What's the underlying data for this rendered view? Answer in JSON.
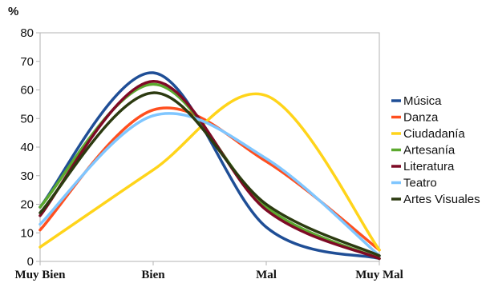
{
  "chart_data": {
    "type": "line",
    "smooth": true,
    "ylabel": "%",
    "ylim": [
      0,
      80
    ],
    "yticks": [
      0,
      10,
      20,
      30,
      40,
      50,
      60,
      70,
      80
    ],
    "categories": [
      "Muy Bien",
      "Bien",
      "Mal",
      "Muy Mal"
    ],
    "grid": false,
    "legend_position": "right",
    "series": [
      {
        "name": "Música",
        "color": "#1f4e96",
        "values": [
          19,
          66,
          12,
          1
        ]
      },
      {
        "name": "Danza",
        "color": "#ff4f1f",
        "values": [
          11,
          53,
          35,
          4
        ]
      },
      {
        "name": "Ciudadanía",
        "color": "#ffd41a",
        "values": [
          5,
          32,
          58,
          4
        ]
      },
      {
        "name": "Artesanía",
        "color": "#5ca92f",
        "values": [
          19,
          62,
          19,
          1
        ]
      },
      {
        "name": "Literatura",
        "color": "#7e0a25",
        "values": [
          16,
          63,
          18,
          1
        ]
      },
      {
        "name": "Teatro",
        "color": "#7fc6ff",
        "values": [
          13,
          51,
          36,
          2
        ]
      },
      {
        "name": "Artes Visuales",
        "color": "#2c3a10",
        "values": [
          17,
          59,
          20,
          2
        ]
      }
    ]
  }
}
